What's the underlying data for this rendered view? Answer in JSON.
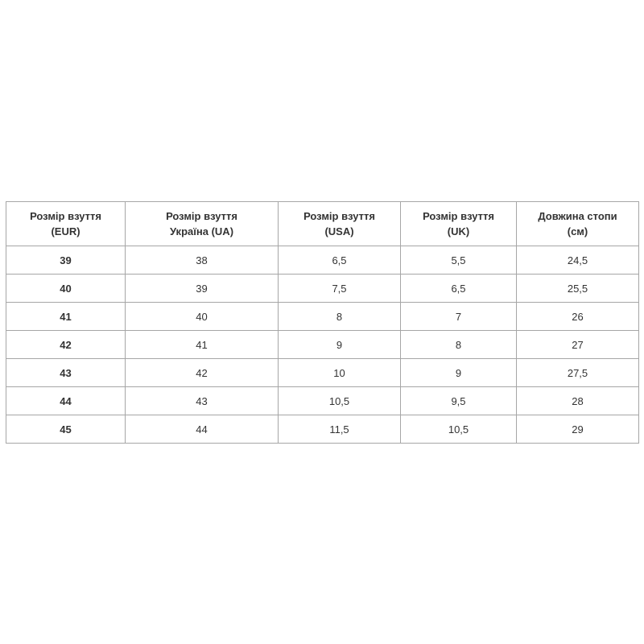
{
  "table": {
    "header": [
      [
        "Розмір взуття",
        "(EUR)"
      ],
      [
        "Розмір взуття",
        "Україна (UA)"
      ],
      [
        "Розмір взуття",
        "(USA)"
      ],
      [
        "Розмір взуття",
        "(UK)"
      ],
      [
        "Довжина стопи",
        "(см)"
      ]
    ],
    "rows": [
      [
        "39",
        "38",
        "6,5",
        "5,5",
        "24,5"
      ],
      [
        "40",
        "39",
        "7,5",
        "6,5",
        "25,5"
      ],
      [
        "41",
        "40",
        "8",
        "7",
        "26"
      ],
      [
        "42",
        "41",
        "9",
        "8",
        "27"
      ],
      [
        "43",
        "42",
        "10",
        "9",
        "27,5"
      ],
      [
        "44",
        "43",
        "10,5",
        "9,5",
        "28"
      ],
      [
        "45",
        "44",
        "11,5",
        "10,5",
        "29"
      ]
    ]
  }
}
